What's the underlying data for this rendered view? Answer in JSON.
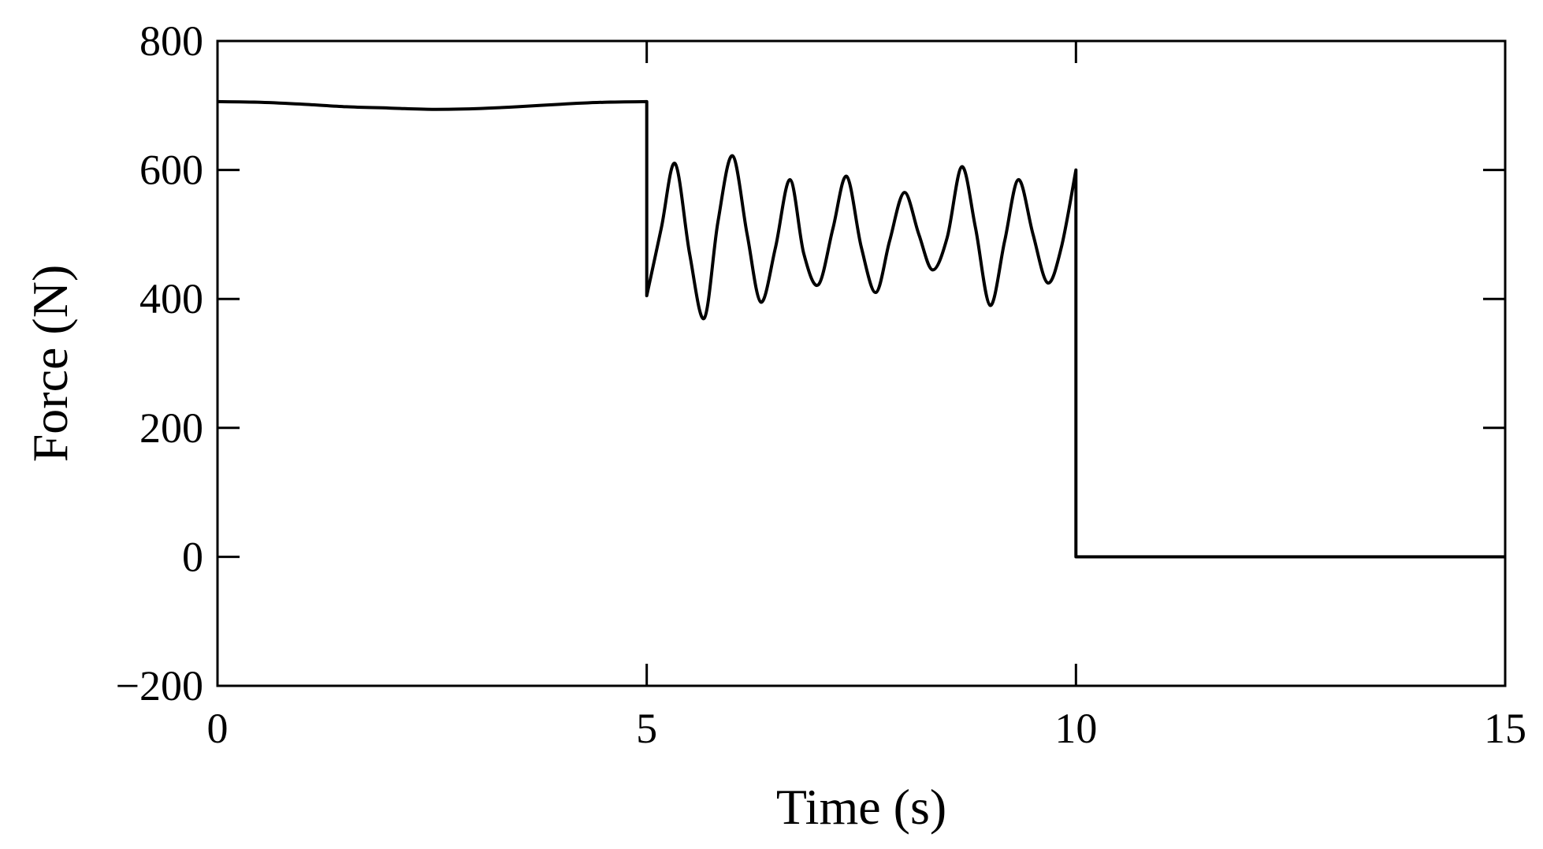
{
  "chart_data": {
    "type": "line",
    "title": "",
    "xlabel": "Time (s)",
    "ylabel": "Force (N)",
    "xlim": [
      0,
      15
    ],
    "ylim": [
      -200,
      800
    ],
    "xticks": [
      0,
      5,
      10,
      15
    ],
    "yticks": [
      -200,
      0,
      200,
      400,
      600,
      800
    ],
    "xtick_labels": [
      "0",
      "5",
      "10",
      "15"
    ],
    "ytick_labels": [
      "−200",
      "0",
      "200",
      "400",
      "600",
      "800"
    ],
    "grid": false,
    "legend": "none",
    "line_color": "#000000",
    "series": [
      {
        "x": [
          0,
          0.5,
          1.0,
          1.5,
          2.0,
          2.5,
          3.0,
          3.5,
          4.0,
          4.5,
          5.0,
          5.0,
          5.17,
          5.33,
          5.5,
          5.67,
          5.83,
          6.0,
          6.17,
          6.33,
          6.5,
          6.67,
          6.83,
          7.0,
          7.17,
          7.33,
          7.5,
          7.67,
          7.83,
          8.0,
          8.17,
          8.33,
          8.5,
          8.67,
          8.83,
          9.0,
          9.17,
          9.33,
          9.5,
          9.67,
          9.83,
          10.0,
          10.0,
          11.0,
          12.0,
          13.0,
          14.0,
          15.0
        ],
        "y": [
          706,
          705,
          702,
          698,
          696,
          694,
          695,
          698,
          702,
          705,
          706,
          405,
          510,
          610,
          470,
          370,
          520,
          622,
          500,
          395,
          480,
          585,
          470,
          422,
          510,
          590,
          480,
          410,
          490,
          565,
          500,
          445,
          495,
          605,
          510,
          390,
          490,
          585,
          500,
          425,
          480,
          600,
          0,
          0,
          0,
          0,
          0,
          0
        ]
      }
    ]
  }
}
